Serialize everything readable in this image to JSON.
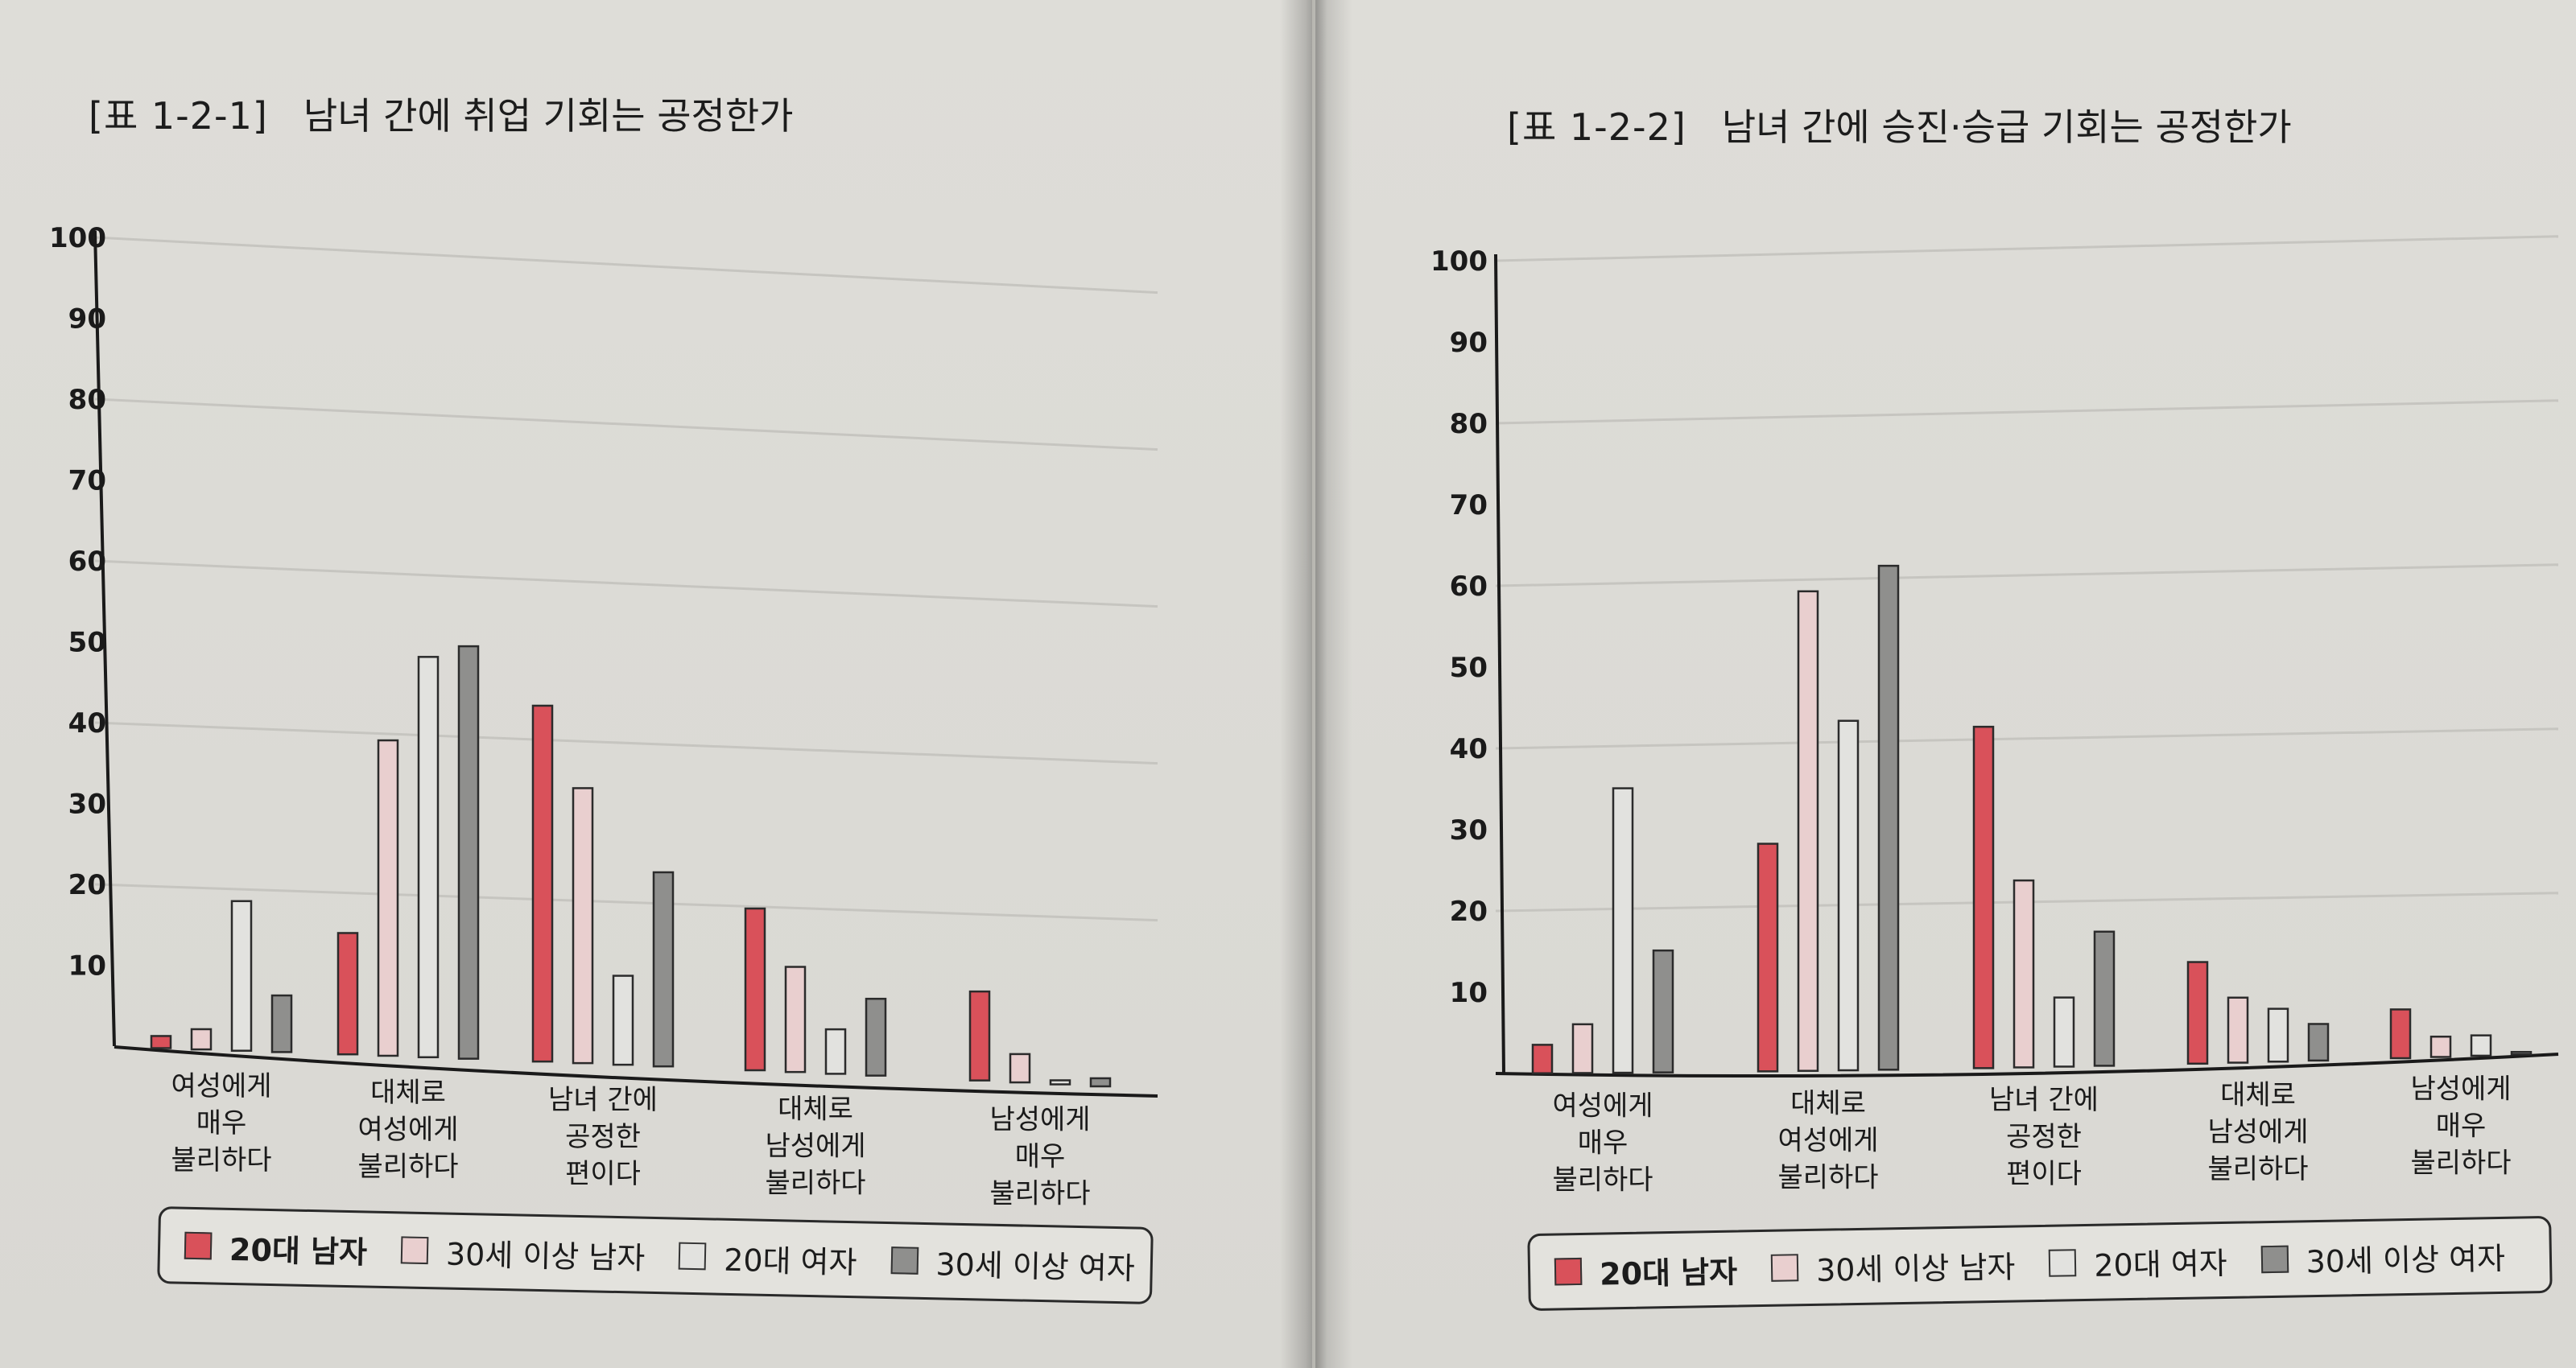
{
  "colors": {
    "s1": "#d9515a",
    "s2": "#e9cfcf",
    "s3": "#e2e2df",
    "s4": "#8f8f8d",
    "bar_stroke": "#2b2b2b",
    "grid": "#c6c5c0",
    "axis": "#1a1a1a"
  },
  "legend": {
    "items": [
      "20대 남자",
      "30세 이상 남자",
      "20대 여자",
      "30세 이상 여자"
    ]
  },
  "chart_data": [
    {
      "type": "bar",
      "title_number": "[표 1-2-1]",
      "title": "남녀 간에 취업 기회는 공정한가",
      "yticks": [
        "10",
        "20",
        "30",
        "40",
        "50",
        "60",
        "70",
        "80",
        "90",
        "100"
      ],
      "ylim": [
        0,
        100
      ],
      "categories": [
        [
          "여성에게",
          "매우",
          "불리하다"
        ],
        [
          "대체로",
          "여성에게",
          "불리하다"
        ],
        [
          "남녀 간에",
          "공정한",
          "편이다"
        ],
        [
          "대체로",
          "남성에게",
          "불리하다"
        ],
        [
          "남성에게",
          "매우",
          "불리하다"
        ]
      ],
      "series": [
        {
          "name": "20대 남자",
          "values": [
            1.5,
            15,
            44,
            20,
            11
          ]
        },
        {
          "name": "30세 이상 남자",
          "values": [
            2.5,
            39,
            34,
            13,
            3.5
          ]
        },
        {
          "name": "20대 여자",
          "values": [
            18.5,
            49.5,
            11,
            5.5,
            0.5
          ]
        },
        {
          "name": "30세 이상 여자",
          "values": [
            7,
            51,
            24,
            9.5,
            1
          ]
        }
      ]
    },
    {
      "type": "bar",
      "title_number": "[표 1-2-2]",
      "title": "남녀 간에 승진·승급 기회는 공정한가",
      "yticks": [
        "10",
        "20",
        "30",
        "40",
        "50",
        "60",
        "70",
        "80",
        "90",
        "100"
      ],
      "ylim": [
        0,
        100
      ],
      "categories": [
        [
          "여성에게",
          "매우",
          "불리하다"
        ],
        [
          "대체로",
          "여성에게",
          "불리하다"
        ],
        [
          "남녀 간에",
          "공정한",
          "편이다"
        ],
        [
          "대체로",
          "남성에게",
          "불리하다"
        ],
        [
          "남성에게",
          "매우",
          "불리하다"
        ]
      ],
      "series": [
        {
          "name": "20대 남자",
          "values": [
            3.5,
            28,
            42,
            12.5,
            6
          ]
        },
        {
          "name": "30세 이상 남자",
          "values": [
            6,
            59,
            23,
            8,
            2.5
          ]
        },
        {
          "name": "20대 여자",
          "values": [
            35,
            43,
            8.5,
            6.5,
            2.5
          ]
        },
        {
          "name": "30세 이상 여자",
          "values": [
            15,
            62,
            16.5,
            4.5,
            0
          ]
        }
      ]
    }
  ]
}
